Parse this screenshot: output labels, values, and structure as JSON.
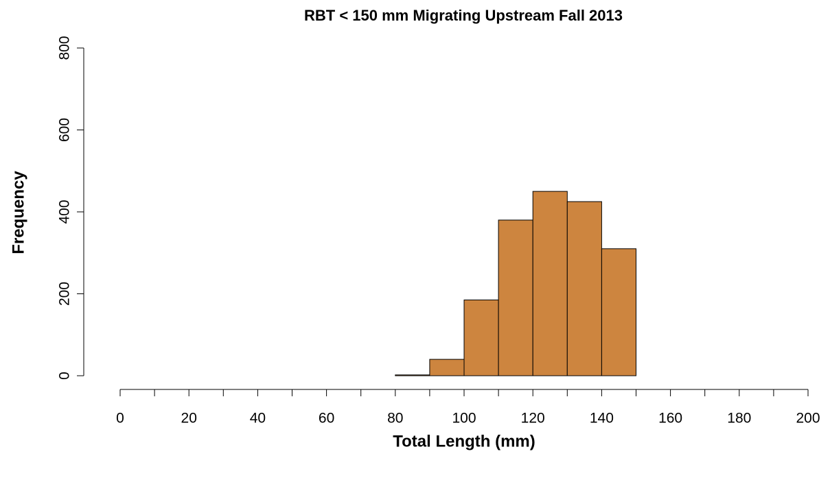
{
  "chart_data": {
    "type": "histogram",
    "title": "RBT < 150 mm Migrating Upstream Fall 2013",
    "x_label": "Total Length (mm)",
    "y_label": "Frequency",
    "bins": [
      0,
      10,
      20,
      30,
      40,
      50,
      60,
      70,
      80,
      90,
      100,
      110,
      120,
      130,
      140,
      150,
      160,
      170,
      180,
      190,
      200
    ],
    "values": [
      0,
      0,
      0,
      0,
      0,
      0,
      0,
      0,
      2,
      40,
      185,
      380,
      450,
      425,
      310,
      0,
      0,
      0,
      0,
      0
    ],
    "color": "#cd853f",
    "xlim": [
      0,
      200
    ],
    "xticks": [
      0,
      20,
      40,
      60,
      80,
      100,
      120,
      140,
      160,
      180,
      200
    ],
    "xminor_ticks": [
      10,
      30,
      50,
      70,
      90,
      110,
      130,
      150,
      170,
      190
    ],
    "ylim": [
      0,
      800
    ],
    "yticks": [
      0,
      200,
      400,
      600,
      800
    ]
  }
}
